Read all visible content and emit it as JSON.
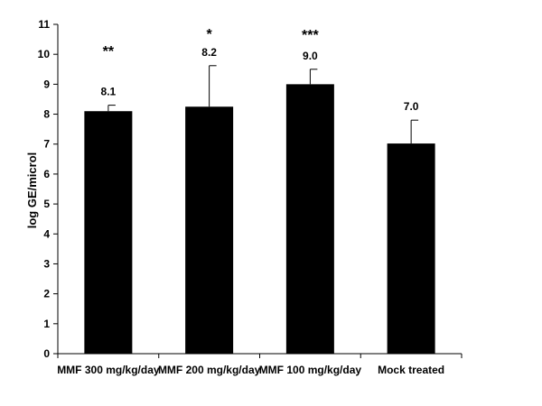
{
  "chart_data": {
    "type": "bar",
    "title": "",
    "xlabel": "",
    "ylabel": "log GE/microl",
    "ylim": [
      0,
      11
    ],
    "yticks": [
      0,
      1,
      2,
      3,
      4,
      5,
      6,
      7,
      8,
      9,
      10,
      11
    ],
    "grid": false,
    "bar_color": "#000000",
    "categories": [
      "MMF 300 mg/kg/day",
      "MMF 200 mg/kg/day",
      "MMF 100 mg/kg/day",
      "Mock treated"
    ],
    "values": [
      8.1,
      8.25,
      9.0,
      7.02
    ],
    "error_upper": [
      8.3,
      9.62,
      9.5,
      7.8
    ],
    "value_labels": [
      "8.1",
      "8.2",
      "9.0",
      "7.0"
    ],
    "significance": [
      "**",
      "*",
      "***",
      ""
    ]
  }
}
